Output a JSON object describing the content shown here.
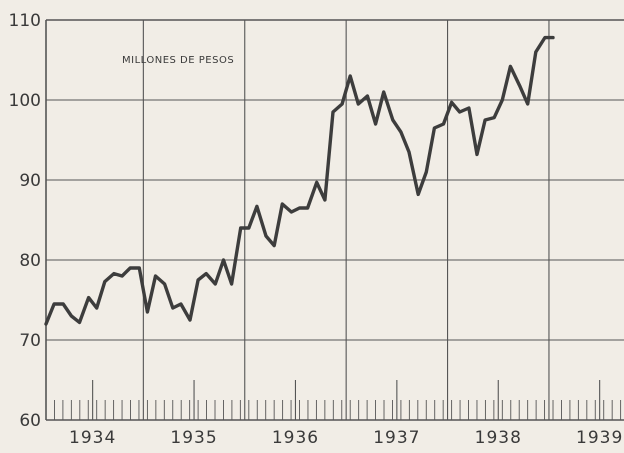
{
  "chart_data": {
    "type": "line",
    "title": "",
    "annotation": "MILLONES DE PESOS",
    "xlabel": "",
    "ylabel": "",
    "ylim": [
      60,
      110
    ],
    "yticks": [
      60,
      70,
      80,
      90,
      100,
      110
    ],
    "ytick_labels": [
      "60",
      "70",
      "80",
      "90",
      "100",
      "110"
    ],
    "xlim": [
      1934,
      1939.7
    ],
    "year_ticks": [
      1934,
      1935,
      1936,
      1937,
      1938,
      1939
    ],
    "year_labels": [
      "1934",
      "1935",
      "1936",
      "1937",
      "1938",
      "1939"
    ],
    "grid": true,
    "line_color": "#3d3d3d",
    "grid_color": "#555555",
    "background_color": "#f1ede6",
    "series": [
      {
        "x": [
          1934.0,
          1934.08,
          1934.17,
          1934.25,
          1934.33,
          1934.42,
          1934.5,
          1934.58,
          1934.67,
          1934.75,
          1934.83,
          1934.92,
          1935.0,
          1935.08,
          1935.17,
          1935.25,
          1935.33,
          1935.42,
          1935.5,
          1935.58,
          1935.67,
          1935.75,
          1935.83,
          1935.92,
          1936.0,
          1936.08,
          1936.17,
          1936.25,
          1936.33,
          1936.42,
          1936.5,
          1936.58,
          1936.67,
          1936.75,
          1936.83,
          1936.92,
          1937.0,
          1937.08,
          1937.17,
          1937.25,
          1937.33,
          1937.42,
          1937.5,
          1937.58,
          1937.67,
          1937.75,
          1937.83,
          1937.92,
          1938.0,
          1938.08,
          1938.17,
          1938.25,
          1938.33,
          1938.42,
          1938.5,
          1938.58,
          1938.67,
          1938.75,
          1938.83,
          1938.92,
          1939.0
        ],
        "y": [
          72.0,
          74.5,
          74.5,
          73.0,
          72.2,
          75.3,
          74.0,
          77.3,
          78.3,
          78.0,
          79.0,
          79.0,
          73.5,
          78.0,
          77.0,
          74.0,
          74.5,
          72.5,
          77.5,
          78.3,
          77.0,
          80.0,
          77.0,
          84.0,
          84.0,
          86.7,
          83.0,
          81.8,
          87.0,
          86.0,
          86.5,
          86.5,
          89.7,
          87.5,
          98.5,
          99.5,
          103.0,
          99.5,
          100.5,
          97.0,
          101.0,
          97.5,
          96.0,
          93.5,
          88.2,
          91.0,
          96.5,
          97.0,
          99.7,
          98.5,
          99.0,
          93.2,
          97.5,
          97.8,
          100.0,
          104.2,
          101.8,
          99.5,
          106.0,
          107.8,
          107.8
        ]
      }
    ]
  }
}
